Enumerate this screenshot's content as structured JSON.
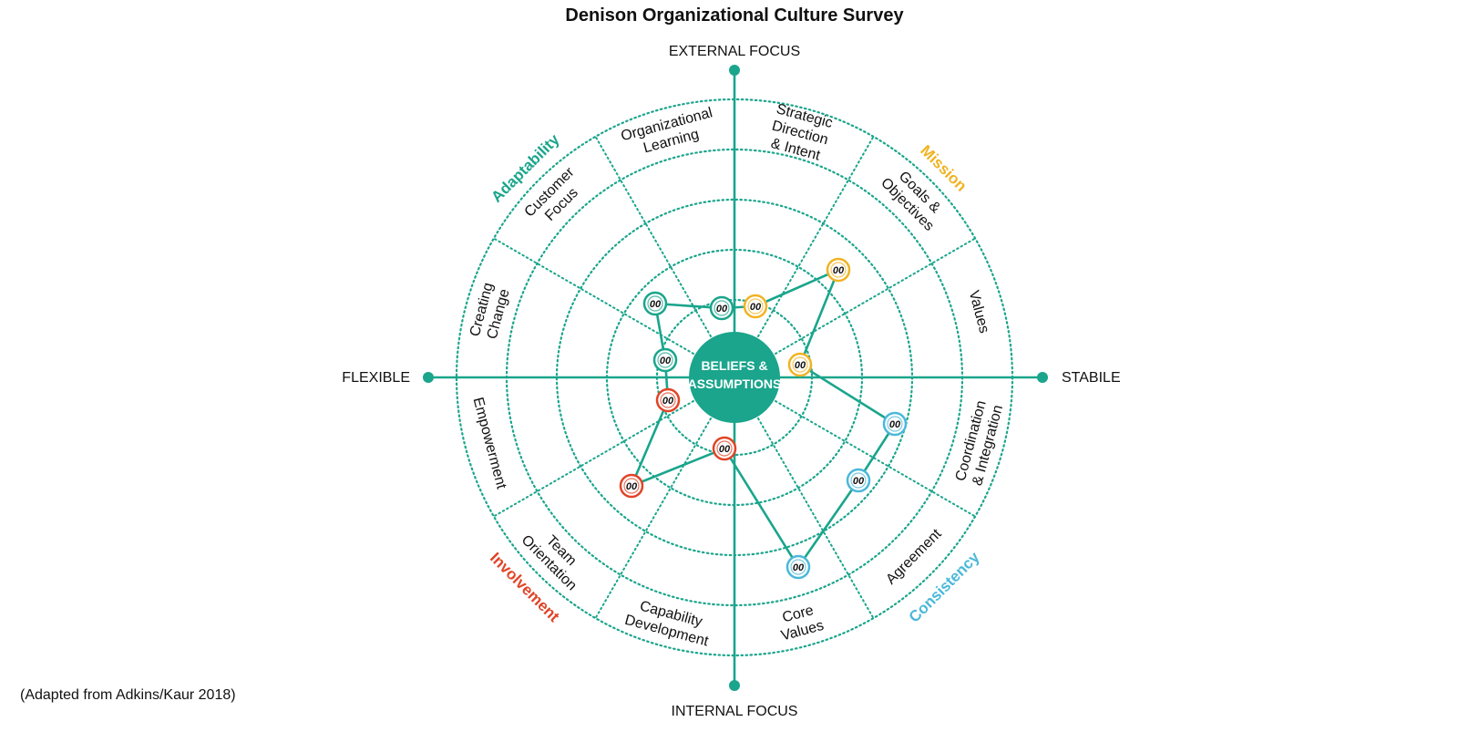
{
  "title": "Denison Organizational Culture Survey",
  "source_note": "(Adapted from Adkins/Kaur 2018)",
  "axes": {
    "top": "EXTERNAL FOCUS",
    "bottom": "INTERNAL FOCUS",
    "left": "FLEXIBLE",
    "right": "STABILE"
  },
  "center": {
    "line1": "BELIEFS &",
    "line2": "ASSUMPTIONS"
  },
  "colors": {
    "teal": "#1aa58c",
    "adaptability": "#1aa58c",
    "mission": "#f0b323",
    "consistency": "#4bb8d9",
    "involvement": "#e04427"
  },
  "traits": [
    {
      "name": "Adaptability",
      "color": "#1aa58c"
    },
    {
      "name": "Mission",
      "color": "#f0b323"
    },
    {
      "name": "Consistency",
      "color": "#4bb8d9"
    },
    {
      "name": "Involvement",
      "color": "#e04427"
    }
  ],
  "segments": [
    {
      "lines": [
        "Strategic",
        "Direction",
        "& Intent"
      ]
    },
    {
      "lines": [
        "Goals &",
        "Objectives"
      ]
    },
    {
      "lines": [
        "Values"
      ]
    },
    {
      "lines": [
        "Coordination",
        "& Integration"
      ]
    },
    {
      "lines": [
        "Agreement"
      ]
    },
    {
      "lines": [
        "Core",
        "Values"
      ]
    },
    {
      "lines": [
        "Capability",
        "Development"
      ]
    },
    {
      "lines": [
        "Team",
        "Orientation"
      ]
    },
    {
      "lines": [
        "Empowerment"
      ]
    },
    {
      "lines": [
        "Creating",
        "Change"
      ]
    },
    {
      "lines": [
        "Customer",
        "Focus"
      ]
    },
    {
      "lines": [
        "Organizational",
        "Learning"
      ]
    }
  ],
  "scores": [
    {
      "trait": "Mission",
      "label": "00"
    },
    {
      "trait": "Mission",
      "label": "00"
    },
    {
      "trait": "Mission",
      "label": "00"
    },
    {
      "trait": "Consistency",
      "label": "00"
    },
    {
      "trait": "Consistency",
      "label": "00"
    },
    {
      "trait": "Consistency",
      "label": "00"
    },
    {
      "trait": "Involvement",
      "label": "00"
    },
    {
      "trait": "Involvement",
      "label": "00"
    },
    {
      "trait": "Involvement",
      "label": "00"
    },
    {
      "trait": "Adaptability",
      "label": "00"
    },
    {
      "trait": "Adaptability",
      "label": "00"
    },
    {
      "trait": "Adaptability",
      "label": "00"
    }
  ]
}
